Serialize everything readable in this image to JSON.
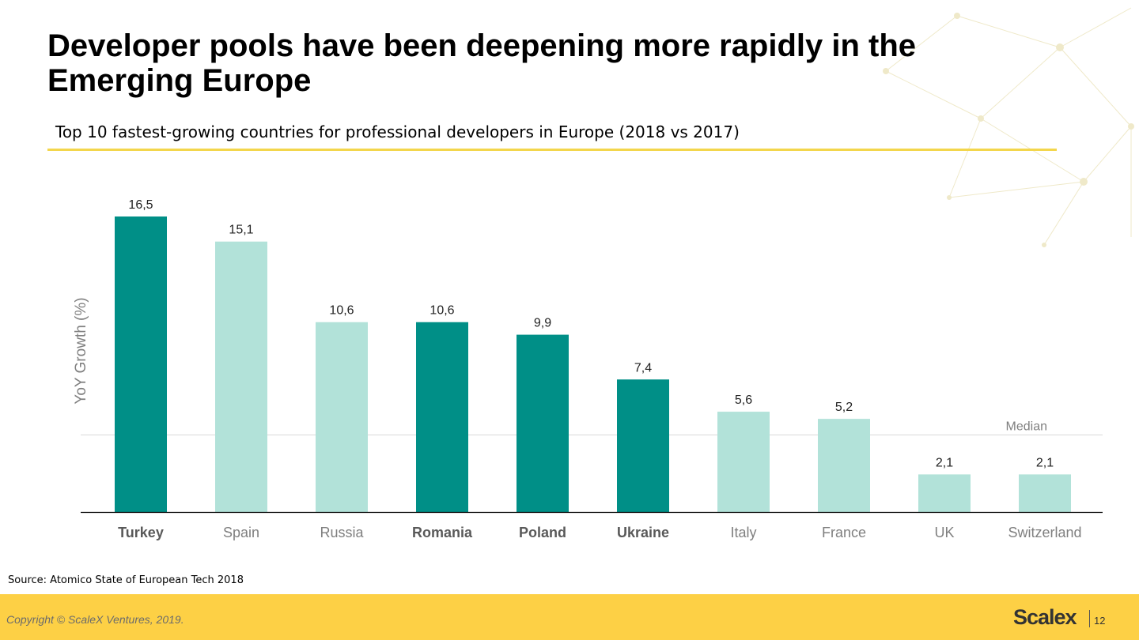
{
  "title": "Developer pools have been deepening more rapidly in the Emerging Europe",
  "subtitle": "Top 10 fastest-growing countries for professional developers in Europe (2018 vs 2017)",
  "source": "Source: Atomico State of European Tech 2018",
  "footer": {
    "copyright": "Copyright © ScaleX Ventures, 2019.",
    "logo": "Scalex",
    "page_number": "12"
  },
  "colors": {
    "highlight": "#008f87",
    "standard": "#b2e2d9",
    "accent_rule": "#f3d64c",
    "footer_bg": "#fdd045"
  },
  "chart_data": {
    "type": "bar",
    "ylabel": "YoY Growth (%)",
    "categories": [
      "Turkey",
      "Spain",
      "Russia",
      "Romania",
      "Poland",
      "Ukraine",
      "Italy",
      "France",
      "UK",
      "Switzerland"
    ],
    "values": [
      16.5,
      15.1,
      10.6,
      10.6,
      9.9,
      7.4,
      5.6,
      5.2,
      2.1,
      2.1
    ],
    "value_labels": [
      "16,5",
      "15,1",
      "10,6",
      "10,6",
      "9,9",
      "7,4",
      "5,6",
      "5,2",
      "2,1",
      "2,1"
    ],
    "highlighted": [
      true,
      false,
      false,
      true,
      true,
      true,
      false,
      false,
      false,
      false
    ],
    "median": {
      "label": "Median",
      "value": 4.3
    },
    "ylim": [
      0,
      18
    ],
    "grid": false
  }
}
